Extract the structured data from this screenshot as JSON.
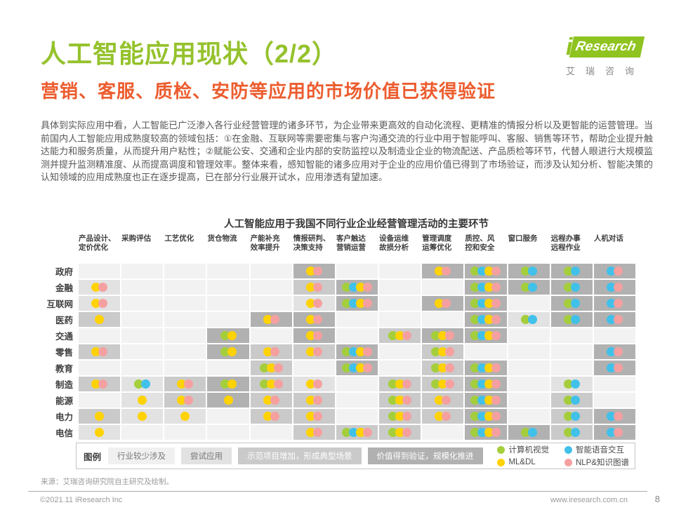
{
  "header": {
    "title": "人工智能应用现状（2/2）",
    "logo": {
      "i": "i",
      "text": "Research",
      "subtext": "艾瑞咨询"
    }
  },
  "subtitle": "营销、客服、质检、安防等应用的市场价值已获得验证",
  "body": "具体到实际应用中看，人工智能已广泛渗入各行业经营管理的诸多环节，为企业带来更高效的自动化流程、更精准的情报分析以及更智能的运营管理。当前国内人工智能应用成熟度较高的领域包括：①在金融、互联网等需要密集与客户沟通交流的行业中用于智能呼叫、客服、销售等环节，帮助企业提升触达能力和服务质量，从而提升用户粘性；②赋能公安、交通和企业内部的安防监控以及制造业企业的物流配送、产品质检等环节，代替人眼进行大规模监测并提升监测精准度、从而提高调度和管理效率。整体来看，感知智能的诸多应用对于企业的应用价值已得到了市场验证，而涉及认知分析、智能决策的认知领域的应用成熟度也正在逐步提高，已在部分行业展开试水，应用渗透有望加速。",
  "chart_data": {
    "type": "heatmap",
    "title": "人工智能应用于我国不同行业企业经营管理活动的主要环节",
    "columns": [
      "产品设计、\n定价优化",
      "采购评估",
      "工艺优化",
      "货仓物流",
      "产能补充\n效率提升",
      "情报研判、\n决策支持",
      "客户触达\n营销运营",
      "设备运维\n故损分析",
      "管理调度\n运筹优化",
      "质控、风\n控和安全",
      "窗口服务",
      "远程办事\n远程作业",
      "人机对话"
    ],
    "rows": [
      "政府",
      "金融",
      "互联网",
      "医药",
      "交通",
      "零售",
      "教育",
      "制造",
      "能源",
      "电力",
      "电信"
    ],
    "level_colors": [
      "#f2f2f2",
      "#e2e2e2",
      "#cacaca",
      "#b1b1b1"
    ],
    "level_labels": [
      "行业较少涉及",
      "尝试应用",
      "示范项目增加，形成典型场景",
      "价值得到验证，规模化推进"
    ],
    "dot_colors": {
      "G": "#a4ce3b",
      "Y": "#ffd203",
      "B": "#41c1e9",
      "P": "#f5a0a0"
    },
    "tech_legend": [
      {
        "label": "计算机视觉",
        "dot": "G"
      },
      {
        "label": "ML&DL",
        "dot": "Y"
      },
      {
        "label": "智能语音交互",
        "dot": "B"
      },
      {
        "label": "NLP&知识图谱",
        "dot": "P"
      }
    ],
    "cells": [
      [
        [
          0,
          ""
        ],
        [
          0,
          ""
        ],
        [
          0,
          ""
        ],
        [
          0,
          ""
        ],
        [
          0,
          ""
        ],
        [
          3,
          "YP"
        ],
        [
          0,
          ""
        ],
        [
          0,
          ""
        ],
        [
          3,
          "YP"
        ],
        [
          3,
          "GBYP"
        ],
        [
          3,
          "GB"
        ],
        [
          3,
          "GB"
        ],
        [
          3,
          "BP"
        ]
      ],
      [
        [
          1,
          "YP"
        ],
        [
          0,
          ""
        ],
        [
          0,
          ""
        ],
        [
          0,
          ""
        ],
        [
          0,
          ""
        ],
        [
          2,
          "YP"
        ],
        [
          3,
          "GBYP"
        ],
        [
          0,
          ""
        ],
        [
          0,
          ""
        ],
        [
          3,
          "GBYP"
        ],
        [
          3,
          "GB"
        ],
        [
          3,
          "GB"
        ],
        [
          3,
          "BP"
        ]
      ],
      [
        [
          1,
          "YP"
        ],
        [
          0,
          ""
        ],
        [
          0,
          ""
        ],
        [
          0,
          ""
        ],
        [
          0,
          ""
        ],
        [
          1,
          "YP"
        ],
        [
          3,
          "GBYP"
        ],
        [
          0,
          ""
        ],
        [
          3,
          "YP"
        ],
        [
          3,
          "GBYP"
        ],
        [
          0,
          ""
        ],
        [
          3,
          "GB"
        ],
        [
          3,
          "BP"
        ]
      ],
      [
        [
          2,
          "Y"
        ],
        [
          0,
          ""
        ],
        [
          0,
          ""
        ],
        [
          0,
          ""
        ],
        [
          3,
          "YP"
        ],
        [
          3,
          "YP"
        ],
        [
          0,
          ""
        ],
        [
          0,
          ""
        ],
        [
          0,
          ""
        ],
        [
          3,
          "GBYP"
        ],
        [
          1,
          "GB"
        ],
        [
          3,
          "GB"
        ],
        [
          3,
          "BP"
        ]
      ],
      [
        [
          0,
          ""
        ],
        [
          0,
          ""
        ],
        [
          0,
          ""
        ],
        [
          3,
          "GY"
        ],
        [
          0,
          ""
        ],
        [
          3,
          "YP"
        ],
        [
          0,
          ""
        ],
        [
          2,
          "GYP"
        ],
        [
          3,
          "GYP"
        ],
        [
          3,
          "GBYP"
        ],
        [
          0,
          ""
        ],
        [
          0,
          ""
        ],
        [
          0,
          ""
        ]
      ],
      [
        [
          2,
          "YP"
        ],
        [
          0,
          ""
        ],
        [
          0,
          ""
        ],
        [
          3,
          "GY"
        ],
        [
          2,
          "YP"
        ],
        [
          2,
          "YP"
        ],
        [
          3,
          "GBYP"
        ],
        [
          0,
          ""
        ],
        [
          2,
          "GYP"
        ],
        [
          0,
          ""
        ],
        [
          0,
          ""
        ],
        [
          0,
          ""
        ],
        [
          3,
          "BP"
        ]
      ],
      [
        [
          0,
          ""
        ],
        [
          0,
          ""
        ],
        [
          0,
          ""
        ],
        [
          0,
          ""
        ],
        [
          2,
          "GYP"
        ],
        [
          0,
          ""
        ],
        [
          3,
          "GBYP"
        ],
        [
          0,
          ""
        ],
        [
          2,
          "GYP"
        ],
        [
          3,
          "GBYP"
        ],
        [
          0,
          ""
        ],
        [
          0,
          ""
        ],
        [
          3,
          "BP"
        ]
      ],
      [
        [
          2,
          "YP"
        ],
        [
          1,
          "GB"
        ],
        [
          2,
          "YP"
        ],
        [
          3,
          "GY"
        ],
        [
          2,
          "GYP"
        ],
        [
          1,
          "YP"
        ],
        [
          0,
          ""
        ],
        [
          2,
          "GYP"
        ],
        [
          2,
          "GYP"
        ],
        [
          3,
          "GBYP"
        ],
        [
          0,
          ""
        ],
        [
          1,
          "GB"
        ],
        [
          0,
          ""
        ]
      ],
      [
        [
          0,
          ""
        ],
        [
          1,
          "Y"
        ],
        [
          2,
          "YP"
        ],
        [
          3,
          "Y"
        ],
        [
          2,
          "YP"
        ],
        [
          2,
          "YP"
        ],
        [
          0,
          ""
        ],
        [
          2,
          "GYP"
        ],
        [
          2,
          "YP"
        ],
        [
          3,
          "GBYP"
        ],
        [
          0,
          ""
        ],
        [
          2,
          "GB"
        ],
        [
          0,
          ""
        ]
      ],
      [
        [
          2,
          "Y"
        ],
        [
          1,
          "Y"
        ],
        [
          1,
          "Y"
        ],
        [
          0,
          ""
        ],
        [
          2,
          "YP"
        ],
        [
          2,
          "YP"
        ],
        [
          0,
          ""
        ],
        [
          2,
          "GYP"
        ],
        [
          2,
          "YP"
        ],
        [
          3,
          "GBYP"
        ],
        [
          0,
          ""
        ],
        [
          2,
          "GB"
        ],
        [
          3,
          "BP"
        ]
      ],
      [
        [
          1,
          "Y"
        ],
        [
          0,
          ""
        ],
        [
          0,
          ""
        ],
        [
          0,
          ""
        ],
        [
          0,
          ""
        ],
        [
          2,
          "YP"
        ],
        [
          2,
          "GBYP"
        ],
        [
          2,
          "GYP"
        ],
        [
          0,
          ""
        ],
        [
          3,
          "GBYP"
        ],
        [
          3,
          "GB"
        ],
        [
          2,
          "GB"
        ],
        [
          3,
          "BP"
        ]
      ]
    ]
  },
  "legend": {
    "label": "图例"
  },
  "source": "来源：艾瑞咨询研究院自主研究及绘制。",
  "footer": {
    "copyright": "©2021.11 iResearch Inc",
    "url": "www.iresearch.com.cn",
    "page": "8"
  }
}
